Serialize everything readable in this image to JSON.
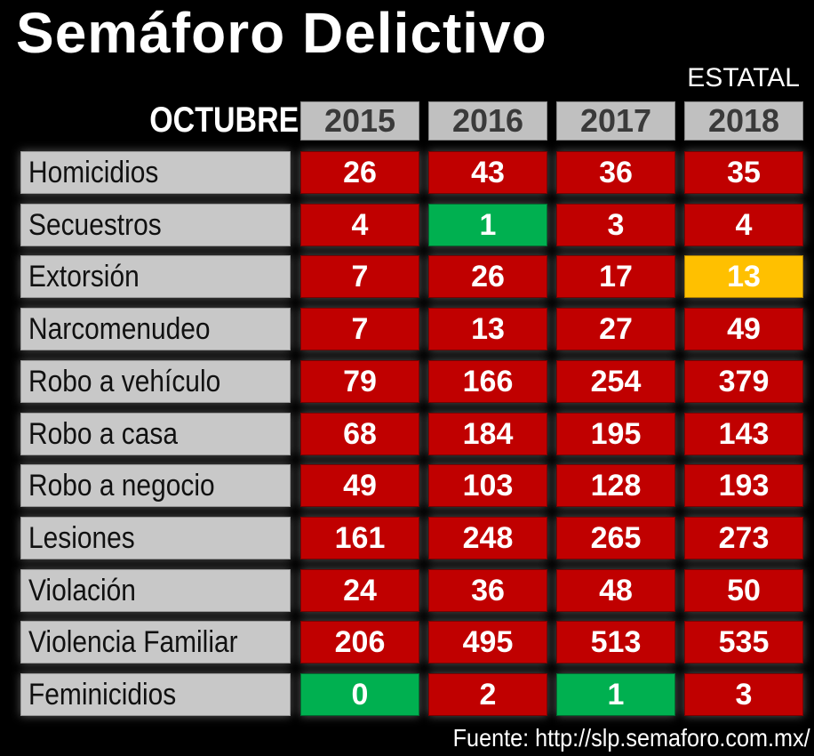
{
  "title": "Semáforo Delictivo",
  "subtitle": "ESTATAL",
  "month": "OCTUBRE",
  "years": [
    "2015",
    "2016",
    "2017",
    "2018"
  ],
  "colors": {
    "red": "#c00000",
    "green": "#00b050",
    "yellow": "#ffc000"
  },
  "rows": [
    {
      "label": "Homicidios",
      "values": [
        "26",
        "43",
        "36",
        "35"
      ],
      "status": [
        "red",
        "red",
        "red",
        "red"
      ]
    },
    {
      "label": "Secuestros",
      "values": [
        "4",
        "1",
        "3",
        "4"
      ],
      "status": [
        "red",
        "green",
        "red",
        "red"
      ]
    },
    {
      "label": "Extorsión",
      "values": [
        "7",
        "26",
        "17",
        "13"
      ],
      "status": [
        "red",
        "red",
        "red",
        "yellow"
      ]
    },
    {
      "label": "Narcomenudeo",
      "values": [
        "7",
        "13",
        "27",
        "49"
      ],
      "status": [
        "red",
        "red",
        "red",
        "red"
      ]
    },
    {
      "label": "Robo a vehículo",
      "values": [
        "79",
        "166",
        "254",
        "379"
      ],
      "status": [
        "red",
        "red",
        "red",
        "red"
      ]
    },
    {
      "label": "Robo a casa",
      "values": [
        "68",
        "184",
        "195",
        "143"
      ],
      "status": [
        "red",
        "red",
        "red",
        "red"
      ]
    },
    {
      "label": "Robo a negocio",
      "values": [
        "49",
        "103",
        "128",
        "193"
      ],
      "status": [
        "red",
        "red",
        "red",
        "red"
      ]
    },
    {
      "label": "Lesiones",
      "values": [
        "161",
        "248",
        "265",
        "273"
      ],
      "status": [
        "red",
        "red",
        "red",
        "red"
      ]
    },
    {
      "label": "Violación",
      "values": [
        "24",
        "36",
        "48",
        "50"
      ],
      "status": [
        "red",
        "red",
        "red",
        "red"
      ]
    },
    {
      "label": "Violencia Familiar",
      "values": [
        "206",
        "495",
        "513",
        "535"
      ],
      "status": [
        "red",
        "red",
        "red",
        "red"
      ]
    },
    {
      "label": "Feminicidios",
      "values": [
        "0",
        "2",
        "1",
        "3"
      ],
      "status": [
        "green",
        "red",
        "green",
        "red"
      ]
    }
  ],
  "source": "Fuente: http://slp.semaforo.com.mx/"
}
